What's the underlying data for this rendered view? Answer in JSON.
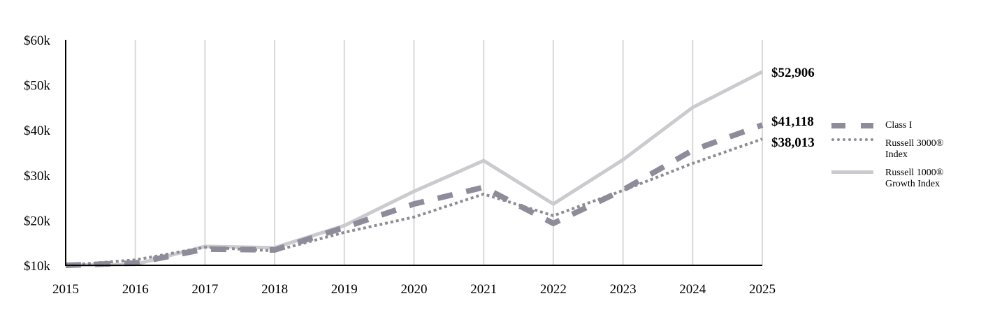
{
  "chart_data": {
    "type": "line",
    "x": [
      2015,
      2016,
      2017,
      2018,
      2019,
      2020,
      2021,
      2022,
      2023,
      2024,
      2025
    ],
    "ylim": [
      10000,
      60000
    ],
    "yticks": [
      10000,
      20000,
      30000,
      40000,
      50000,
      60000
    ],
    "ytick_labels": [
      "$10k",
      "$20k",
      "$30k",
      "$40k",
      "$50k",
      "$60k"
    ],
    "xtick_labels": [
      "2015",
      "2016",
      "2017",
      "2018",
      "2019",
      "2020",
      "2021",
      "2022",
      "2023",
      "2024",
      "2025"
    ],
    "grid": "vertical",
    "legend_position": "right",
    "series": [
      {
        "name": "Russell 1000® Growth Index",
        "legend_line1": "Russell 1000®",
        "legend_line2": "Growth Index",
        "style": "solid",
        "color": "#cbcace",
        "values": [
          10000,
          10200,
          14200,
          13900,
          18800,
          26400,
          33200,
          23600,
          33400,
          45000,
          52906
        ],
        "end_label": "$52,906"
      },
      {
        "name": "Class I",
        "legend_line1": "Class I",
        "legend_line2": "",
        "style": "dashed",
        "color": "#8e8c9a",
        "values": [
          10000,
          10500,
          13600,
          13400,
          18400,
          23600,
          27300,
          19300,
          26700,
          35500,
          41118
        ],
        "end_label": "$41,118"
      },
      {
        "name": "Russell 3000® Index",
        "legend_line1": "Russell 3000®",
        "legend_line2": "Index",
        "style": "dotted",
        "color": "#8e8c94",
        "values": [
          10000,
          11200,
          14000,
          13200,
          17300,
          20700,
          25800,
          21000,
          26600,
          32600,
          38013
        ],
        "end_label": "$38,013"
      }
    ]
  }
}
